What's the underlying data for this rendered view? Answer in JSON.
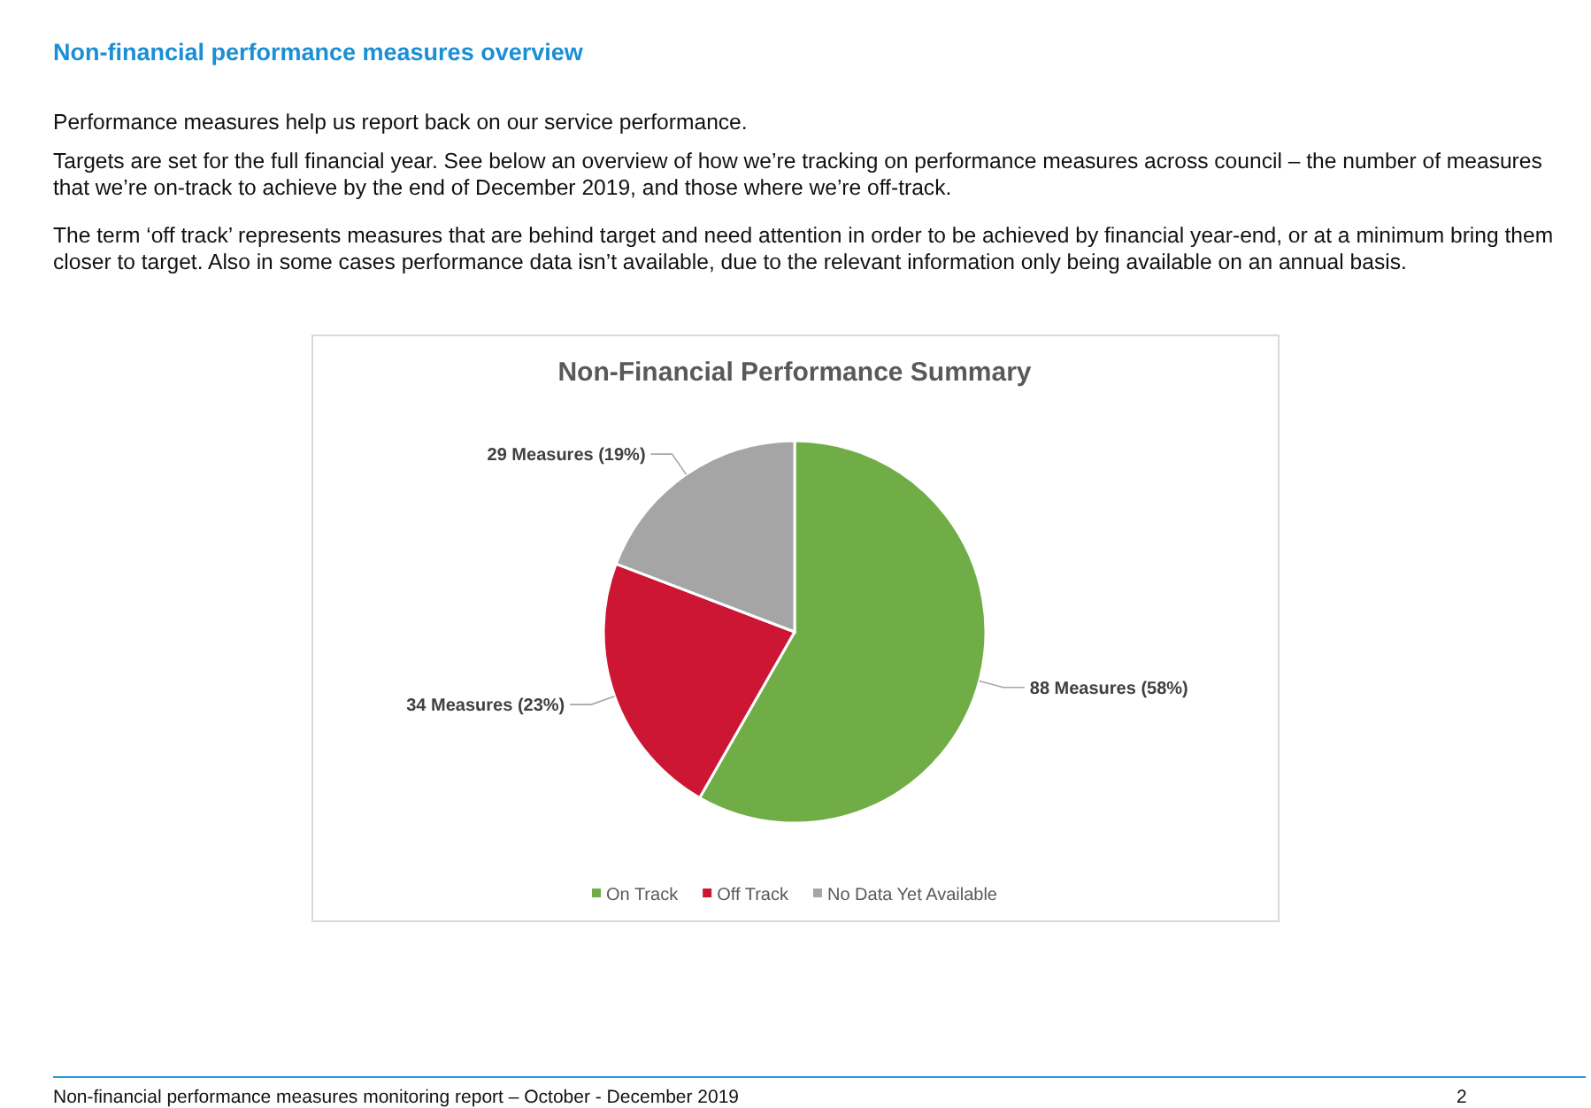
{
  "chart_data": {
    "type": "pie",
    "title": "Non-Financial Performance Summary",
    "categories": [
      "On Track",
      "Off Track",
      "No Data Yet Available"
    ],
    "values": [
      88,
      34,
      29
    ],
    "colors": [
      "#70ad47",
      "#cc1634",
      "#a5a5a5"
    ],
    "value_labels": [
      "88 Measures (58%)",
      "34 Measures (23%)",
      "29 Measures (19%)"
    ],
    "legend": "bottom",
    "annotations": [
      "Non-financial performance measures overview",
      "Performance measures help us report back on our service performance.",
      "Targets are set for the full financial year. See below an overview of how we’re tracking on performance measures across council – the number of measures that we’re on-track to achieve by the end of December 2019, and those where we’re off-track.",
      "The term ‘off track’ represents measures that are behind target and need attention in order to be achieved by financial year-end, or at a minimum bring them closer to target. Also in some cases performance data isn’t available, due to the relevant information only being available on an annual basis.",
      "Non-financial performance measures monitoring report – October - December 2019",
      "2"
    ]
  }
}
